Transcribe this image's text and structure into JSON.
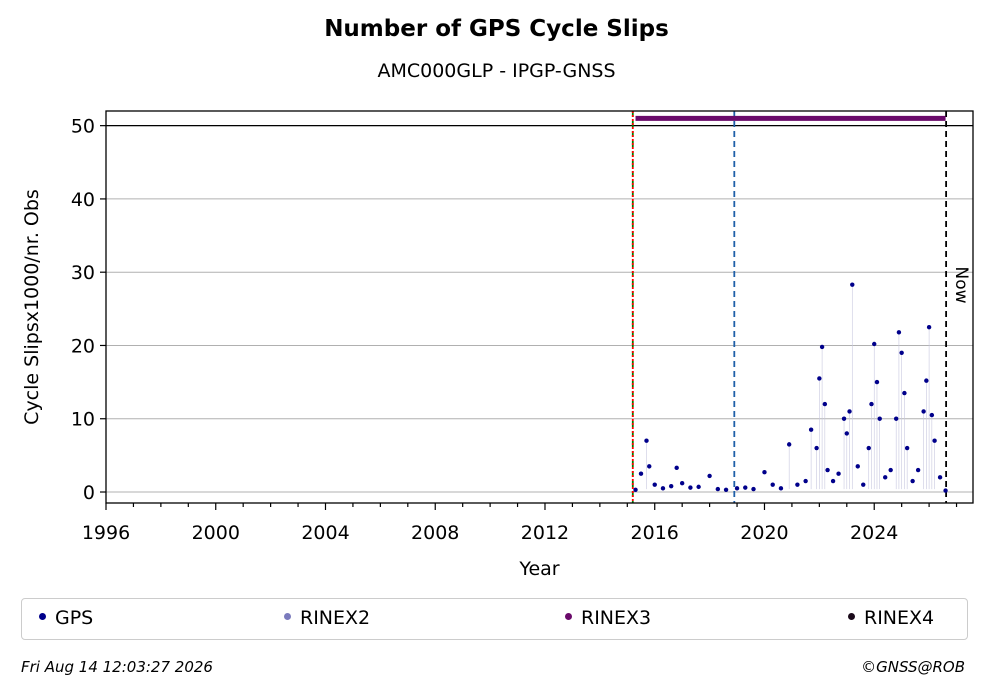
{
  "header": {
    "title": "Number of GPS Cycle Slips",
    "subtitle": "AMC000GLP - IPGP-GNSS"
  },
  "chart_data": {
    "type": "scatter",
    "xlabel": "Year",
    "ylabel": "Cycle Slipsx1000/nr. Obs",
    "xlim": [
      1996,
      2027.6
    ],
    "ylim": [
      -1.5,
      52
    ],
    "x_ticks": [
      1996,
      2000,
      2004,
      2008,
      2012,
      2016,
      2020,
      2024
    ],
    "y_ticks": [
      0,
      10,
      20,
      30,
      40,
      50
    ],
    "grid": "horizontal",
    "reference_lines": [
      {
        "kind": "solid",
        "y": 50,
        "color": "#000000"
      },
      {
        "kind": "vertical-dashed",
        "x": 2015.2,
        "color": "#008000"
      },
      {
        "kind": "vertical-dotted",
        "x": 2015.2,
        "color": "#ff0000"
      },
      {
        "kind": "vertical-dashed",
        "x": 2018.9,
        "color": "#1f5fa8"
      },
      {
        "kind": "vertical-dashed",
        "x": 2026.62,
        "color": "#000000",
        "label": "Now"
      }
    ],
    "availability_bar": {
      "series": "RINEX3",
      "y": 51,
      "x_start": 2015.3,
      "x_end": 2026.6,
      "color": "#6a0a6a"
    },
    "series": [
      {
        "name": "GPS",
        "color": "#00008b",
        "x": [
          2015.3,
          2015.5,
          2015.7,
          2015.8,
          2016.0,
          2016.3,
          2016.6,
          2016.8,
          2017.0,
          2017.3,
          2017.6,
          2018.0,
          2018.3,
          2018.6,
          2019.0,
          2019.3,
          2019.6,
          2020.0,
          2020.3,
          2020.6,
          2020.9,
          2021.2,
          2021.5,
          2021.7,
          2021.9,
          2022.0,
          2022.1,
          2022.2,
          2022.3,
          2022.5,
          2022.7,
          2022.9,
          2023.0,
          2023.1,
          2023.2,
          2023.4,
          2023.6,
          2023.8,
          2023.9,
          2024.0,
          2024.1,
          2024.2,
          2024.4,
          2024.6,
          2024.8,
          2024.9,
          2025.0,
          2025.1,
          2025.2,
          2025.4,
          2025.6,
          2025.8,
          2025.9,
          2026.0,
          2026.1,
          2026.2,
          2026.4,
          2026.6
        ],
        "y": [
          0.3,
          2.5,
          7.0,
          3.5,
          1.0,
          0.5,
          0.8,
          3.3,
          1.2,
          0.6,
          0.7,
          2.2,
          0.4,
          0.3,
          0.5,
          0.6,
          0.4,
          2.7,
          1.0,
          0.5,
          6.5,
          1.0,
          1.5,
          8.5,
          6.0,
          15.5,
          19.8,
          12.0,
          3.0,
          1.5,
          2.5,
          10.0,
          8.0,
          11.0,
          28.3,
          3.5,
          1.0,
          6.0,
          12.0,
          20.2,
          15.0,
          10.0,
          2.0,
          3.0,
          10.0,
          21.8,
          19.0,
          13.5,
          6.0,
          1.5,
          3.0,
          11.0,
          15.2,
          22.5,
          10.5,
          7.0,
          2.0,
          0.2
        ]
      },
      {
        "name": "RINEX2",
        "color": "#7b7bbd",
        "x": [],
        "y": []
      },
      {
        "name": "RINEX3",
        "color": "#6a0a6a",
        "x": [],
        "y": []
      },
      {
        "name": "RINEX4",
        "color": "#1a0a1a",
        "x": [],
        "y": []
      }
    ]
  },
  "legend": {
    "items": [
      {
        "label": "GPS",
        "color": "#00008b"
      },
      {
        "label": "RINEX2",
        "color": "#7b7bbd"
      },
      {
        "label": "RINEX3",
        "color": "#6a0a6a"
      },
      {
        "label": "RINEX4",
        "color": "#1a0a1a"
      }
    ]
  },
  "footer": {
    "timestamp": "Fri Aug 14 12:03:27 2026",
    "credit": "©GNSS@ROB"
  }
}
